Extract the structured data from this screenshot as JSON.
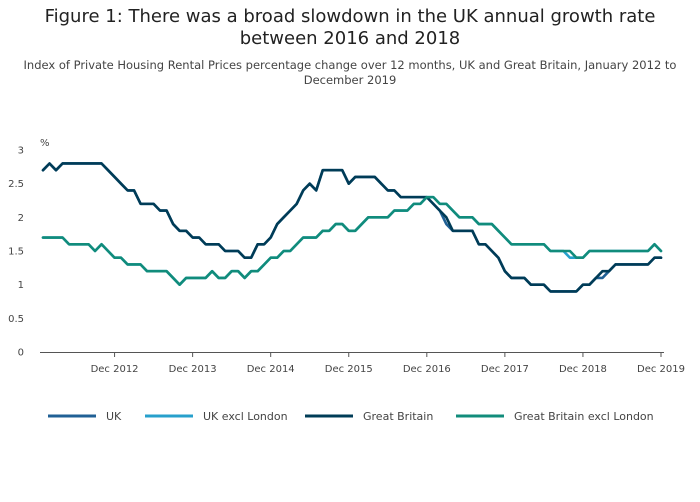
{
  "chart_data": {
    "type": "line",
    "title": "Figure 1: There was a broad slowdown in the UK annual growth rate between 2016 and 2018",
    "subtitle": "Index of Private Housing Rental Prices percentage change over 12 months, UK and Great Britain, January 2012 to December 2019",
    "y_unit_label": "%",
    "ylim": [
      0,
      3
    ],
    "y_ticks": [
      0,
      0.5,
      1,
      1.5,
      2,
      2.5,
      3
    ],
    "y_tick_labels": [
      "0",
      "0.5",
      "1",
      "1.5",
      "2",
      "2.5",
      "3"
    ],
    "x_start": "Jan 2012",
    "x_end": "Dec 2019",
    "x_tick_labels": [
      "Dec 2012",
      "Dec 2013",
      "Dec 2014",
      "Dec 2015",
      "Dec 2016",
      "Dec 2017",
      "Dec 2018",
      "Dec 2019"
    ],
    "x_tick_indices": [
      11,
      23,
      35,
      47,
      59,
      71,
      83,
      95
    ],
    "grid": false,
    "legend_position": "bottom",
    "series": [
      {
        "name": "UK",
        "color": "#206095",
        "values": [
          2.7,
          2.8,
          2.7,
          2.8,
          2.8,
          2.8,
          2.8,
          2.8,
          2.8,
          2.8,
          2.7,
          2.6,
          2.5,
          2.4,
          2.4,
          2.2,
          2.2,
          2.2,
          2.1,
          2.1,
          1.9,
          1.8,
          1.8,
          1.7,
          1.7,
          1.6,
          1.6,
          1.6,
          1.5,
          1.5,
          1.5,
          1.4,
          1.4,
          1.6,
          1.6,
          1.7,
          1.9,
          2.0,
          2.1,
          2.2,
          2.4,
          2.5,
          2.4,
          2.7,
          2.7,
          2.7,
          2.7,
          2.5,
          2.6,
          2.6,
          2.6,
          2.6,
          2.5,
          2.4,
          2.4,
          2.3,
          2.3,
          2.3,
          2.3,
          2.3,
          2.2,
          2.1,
          1.9,
          1.8,
          1.8,
          1.8,
          1.8,
          1.6,
          1.6,
          1.5,
          1.4,
          1.2,
          1.1,
          1.1,
          1.1,
          1.0,
          1.0,
          1.0,
          0.9,
          0.9,
          0.9,
          0.9,
          0.9,
          1.0,
          1.0,
          1.1,
          1.1,
          1.2,
          1.3,
          1.3,
          1.3,
          1.3,
          1.3,
          1.3,
          1.4,
          1.4
        ]
      },
      {
        "name": "UK excl London",
        "color": "#27a0cc",
        "values": [
          1.7,
          1.7,
          1.7,
          1.7,
          1.6,
          1.6,
          1.6,
          1.6,
          1.5,
          1.6,
          1.5,
          1.4,
          1.4,
          1.3,
          1.3,
          1.3,
          1.2,
          1.2,
          1.2,
          1.2,
          1.1,
          1.0,
          1.1,
          1.1,
          1.1,
          1.1,
          1.2,
          1.1,
          1.1,
          1.2,
          1.2,
          1.1,
          1.2,
          1.2,
          1.3,
          1.4,
          1.4,
          1.5,
          1.5,
          1.6,
          1.7,
          1.7,
          1.7,
          1.8,
          1.8,
          1.9,
          1.9,
          1.8,
          1.8,
          1.9,
          2.0,
          2.0,
          2.0,
          2.0,
          2.1,
          2.1,
          2.1,
          2.2,
          2.2,
          2.3,
          2.3,
          2.2,
          2.2,
          2.1,
          2.0,
          2.0,
          2.0,
          1.9,
          1.9,
          1.9,
          1.8,
          1.7,
          1.6,
          1.6,
          1.6,
          1.6,
          1.6,
          1.6,
          1.5,
          1.5,
          1.5,
          1.4,
          1.4,
          1.4,
          1.5,
          1.5,
          1.5,
          1.5,
          1.5,
          1.5,
          1.5,
          1.5,
          1.5,
          1.5,
          1.6,
          1.5
        ]
      },
      {
        "name": "Great Britain",
        "color": "#003c57",
        "values": [
          2.7,
          2.8,
          2.7,
          2.8,
          2.8,
          2.8,
          2.8,
          2.8,
          2.8,
          2.8,
          2.7,
          2.6,
          2.5,
          2.4,
          2.4,
          2.2,
          2.2,
          2.2,
          2.1,
          2.1,
          1.9,
          1.8,
          1.8,
          1.7,
          1.7,
          1.6,
          1.6,
          1.6,
          1.5,
          1.5,
          1.5,
          1.4,
          1.4,
          1.6,
          1.6,
          1.7,
          1.9,
          2.0,
          2.1,
          2.2,
          2.4,
          2.5,
          2.4,
          2.7,
          2.7,
          2.7,
          2.7,
          2.5,
          2.6,
          2.6,
          2.6,
          2.6,
          2.5,
          2.4,
          2.4,
          2.3,
          2.3,
          2.3,
          2.3,
          2.3,
          2.2,
          2.1,
          2.0,
          1.8,
          1.8,
          1.8,
          1.8,
          1.6,
          1.6,
          1.5,
          1.4,
          1.2,
          1.1,
          1.1,
          1.1,
          1.0,
          1.0,
          1.0,
          0.9,
          0.9,
          0.9,
          0.9,
          0.9,
          1.0,
          1.0,
          1.1,
          1.2,
          1.2,
          1.3,
          1.3,
          1.3,
          1.3,
          1.3,
          1.3,
          1.4,
          1.4
        ]
      },
      {
        "name": "Great Britain excl London",
        "color": "#118c7b",
        "values": [
          1.7,
          1.7,
          1.7,
          1.7,
          1.6,
          1.6,
          1.6,
          1.6,
          1.5,
          1.6,
          1.5,
          1.4,
          1.4,
          1.3,
          1.3,
          1.3,
          1.2,
          1.2,
          1.2,
          1.2,
          1.1,
          1.0,
          1.1,
          1.1,
          1.1,
          1.1,
          1.2,
          1.1,
          1.1,
          1.2,
          1.2,
          1.1,
          1.2,
          1.2,
          1.3,
          1.4,
          1.4,
          1.5,
          1.5,
          1.6,
          1.7,
          1.7,
          1.7,
          1.8,
          1.8,
          1.9,
          1.9,
          1.8,
          1.8,
          1.9,
          2.0,
          2.0,
          2.0,
          2.0,
          2.1,
          2.1,
          2.1,
          2.2,
          2.2,
          2.3,
          2.3,
          2.2,
          2.2,
          2.1,
          2.0,
          2.0,
          2.0,
          1.9,
          1.9,
          1.9,
          1.8,
          1.7,
          1.6,
          1.6,
          1.6,
          1.6,
          1.6,
          1.6,
          1.5,
          1.5,
          1.5,
          1.5,
          1.4,
          1.4,
          1.5,
          1.5,
          1.5,
          1.5,
          1.5,
          1.5,
          1.5,
          1.5,
          1.5,
          1.5,
          1.6,
          1.5
        ]
      }
    ]
  }
}
